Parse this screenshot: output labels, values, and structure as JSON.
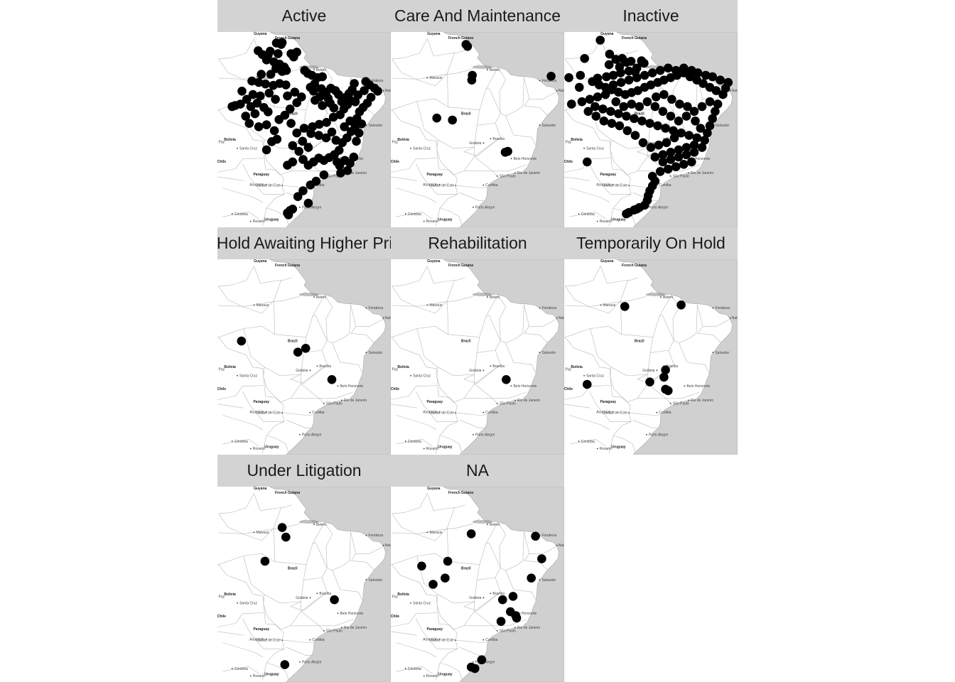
{
  "colors": {
    "strip": "#d3d3d3",
    "ocean": "#d0d0d0",
    "land": "#ffffff",
    "border": "#b8b8b8",
    "point": "#000000",
    "text": "#1a1a1a"
  },
  "map_labels": {
    "countries": [
      "Guyana",
      "French Guiana",
      "Brazil",
      "Bolivia",
      "Paraguay",
      "Chile",
      "Uruguay"
    ],
    "cities": [
      "Manaus",
      "Belém",
      "Fortaleza",
      "Natal",
      "Salvador",
      "Brasília",
      "Goiânia",
      "Belo Horizonte",
      "Rio de Janeiro",
      "São Paulo",
      "Curitiba",
      "Porto Alegre",
      "La Paz",
      "Santa Cruz",
      "Asunción",
      "Ciudad del Este",
      "Córdoba",
      "Rosario"
    ]
  },
  "facets": [
    {
      "title": "Active",
      "points": [
        [
          -55.7,
          4.1
        ],
        [
          -54.6,
          4.2
        ],
        [
          -54.8,
          3.8
        ],
        [
          -59.2,
          2.5
        ],
        [
          -58.4,
          1.7
        ],
        [
          -57.3,
          1.6
        ],
        [
          -56.9,
          2.4
        ],
        [
          -55.4,
          1.9
        ],
        [
          -51.8,
          2.2
        ],
        [
          -52.9,
          1.9
        ],
        [
          -52.4,
          1.2
        ],
        [
          -57.6,
          0.6
        ],
        [
          -56.2,
          0.2
        ],
        [
          -55.1,
          -0.3
        ],
        [
          -54.2,
          -0.9
        ],
        [
          -53.8,
          -1.6
        ],
        [
          -54.6,
          -1.8
        ],
        [
          -55.8,
          -1.2
        ],
        [
          -56.8,
          -2.4
        ],
        [
          -58.6,
          -2.4
        ],
        [
          -60.4,
          -3.8
        ],
        [
          -59.1,
          -4.1
        ],
        [
          -57.8,
          -4.4
        ],
        [
          -56.3,
          -4.7
        ],
        [
          -55.1,
          -4.3
        ],
        [
          -53.9,
          -4.6
        ],
        [
          -50.3,
          -1.6
        ],
        [
          -49.7,
          -2.2
        ],
        [
          -48.9,
          -2.6
        ],
        [
          -47.8,
          -3.1
        ],
        [
          -46.9,
          -2.9
        ],
        [
          -48.4,
          -4.4
        ],
        [
          -49.2,
          -5.1
        ],
        [
          -48.6,
          -5.9
        ],
        [
          -47.1,
          -5.4
        ],
        [
          -46.2,
          -6.2
        ],
        [
          -45.3,
          -5.3
        ],
        [
          -44.4,
          -5.8
        ],
        [
          -43.8,
          -6.6
        ],
        [
          -45.8,
          -7.4
        ],
        [
          -47.4,
          -7.1
        ],
        [
          -48.3,
          -7.8
        ],
        [
          -46.9,
          -8.9
        ],
        [
          -45.4,
          -8.4
        ],
        [
          -44.7,
          -9.4
        ],
        [
          -43.2,
          -8.1
        ],
        [
          -42.5,
          -7.2
        ],
        [
          -41.8,
          -6.4
        ],
        [
          -41.2,
          -5.6
        ],
        [
          -40.8,
          -4.3
        ],
        [
          -38.6,
          -3.9
        ],
        [
          -37.9,
          -4.6
        ],
        [
          -38.9,
          -5.8
        ],
        [
          -40.1,
          -6.7
        ],
        [
          -41.4,
          -7.9
        ],
        [
          -42.8,
          -9.6
        ],
        [
          -43.5,
          -10.8
        ],
        [
          -44.8,
          -11.3
        ],
        [
          -46.1,
          -12.4
        ],
        [
          -47.5,
          -12.8
        ],
        [
          -48.8,
          -13.3
        ],
        [
          -50.4,
          -13.6
        ],
        [
          -49.1,
          -14.7
        ],
        [
          -47.6,
          -15.1
        ],
        [
          -46.2,
          -15.6
        ],
        [
          -45.1,
          -14.4
        ],
        [
          -44.3,
          -16.1
        ],
        [
          -43.1,
          -16.6
        ],
        [
          -42.2,
          -15.6
        ],
        [
          -41.4,
          -14.3
        ],
        [
          -40.6,
          -13.2
        ],
        [
          -40.3,
          -11.6
        ],
        [
          -39.8,
          -10.2
        ],
        [
          -41.6,
          -12.1
        ],
        [
          -42.7,
          -13.3
        ],
        [
          -43.7,
          -18.2
        ],
        [
          -44.6,
          -19.1
        ],
        [
          -45.6,
          -19.7
        ],
        [
          -46.6,
          -20.3
        ],
        [
          -47.6,
          -19.8
        ],
        [
          -48.6,
          -20.6
        ],
        [
          -49.6,
          -21.3
        ],
        [
          -50.6,
          -20.1
        ],
        [
          -52.6,
          -20.6
        ],
        [
          -53.6,
          -21.3
        ],
        [
          -44.1,
          -20.6
        ],
        [
          -43.6,
          -21.4
        ],
        [
          -42.6,
          -20.3
        ],
        [
          -41.6,
          -20.9
        ],
        [
          -40.9,
          -19.6
        ],
        [
          -42.1,
          -22.4
        ],
        [
          -43.4,
          -22.9
        ],
        [
          -46.6,
          -23.3
        ],
        [
          -48.1,
          -24.6
        ],
        [
          -49.2,
          -25.4
        ],
        [
          -50.6,
          -26.6
        ],
        [
          -51.6,
          -27.8
        ],
        [
          -49.6,
          -29.2
        ],
        [
          -53.6,
          -31.2
        ],
        [
          -53.1,
          -30.7
        ],
        [
          -52.6,
          -30.4
        ],
        [
          -53.4,
          -31.6
        ],
        [
          -61.4,
          -7.6
        ],
        [
          -62.6,
          -8.6
        ],
        [
          -60.6,
          -9.1
        ],
        [
          -59.4,
          -8.4
        ],
        [
          -58.1,
          -9.3
        ],
        [
          -57.3,
          -10.2
        ],
        [
          -59.8,
          -10.6
        ],
        [
          -61.6,
          -11.1
        ],
        [
          -60.9,
          -12.6
        ],
        [
          -59.1,
          -13.3
        ],
        [
          -57.6,
          -12.9
        ],
        [
          -56.1,
          -14.1
        ],
        [
          -55.6,
          -15.9
        ],
        [
          -56.6,
          -16.4
        ],
        [
          -57.6,
          -18.1
        ],
        [
          -55.2,
          -11.8
        ],
        [
          -54.1,
          -10.9
        ],
        [
          -53.1,
          -9.6
        ],
        [
          -51.8,
          -8.3
        ],
        [
          -50.9,
          -7.1
        ],
        [
          -52.2,
          -6.1
        ],
        [
          -53.6,
          -6.9
        ],
        [
          -55.9,
          -7.6
        ],
        [
          -57.1,
          -6.3
        ],
        [
          -58.8,
          -6.9
        ],
        [
          -60.2,
          -6.6
        ],
        [
          -62.3,
          -5.9
        ],
        [
          -63.6,
          -8.9
        ],
        [
          -64.2,
          -9.1
        ],
        [
          -52.9,
          -12.6
        ],
        [
          -51.8,
          -14.6
        ],
        [
          -50.7,
          -16.3
        ],
        [
          -49.6,
          -17.6
        ],
        [
          -51.4,
          -18.4
        ],
        [
          -52.6,
          -17.2
        ],
        [
          -36.9,
          -5.3
        ],
        [
          -36.3,
          -5.9
        ],
        [
          -37.6,
          -7.2
        ],
        [
          -38.3,
          -8.4
        ],
        [
          -39.1,
          -9.3
        ],
        [
          -40.6,
          -8.1
        ],
        [
          -42.1,
          -8.7
        ],
        [
          -39.4,
          -12.7
        ],
        [
          -39.9,
          -14.6
        ],
        [
          -40.4,
          -16.3
        ]
      ]
    },
    {
      "title": "Care And Maintenance",
      "points": [
        [
          -52.6,
          3.8
        ],
        [
          -52.3,
          3.4
        ],
        [
          -51.4,
          -2.6
        ],
        [
          -51.5,
          -3.6
        ],
        [
          -36.3,
          -2.8
        ],
        [
          -58.2,
          -11.5
        ],
        [
          -55.2,
          -11.9
        ],
        [
          -45.1,
          -18.6
        ],
        [
          -44.6,
          -18.4
        ]
      ]
    },
    {
      "title": "Inactive",
      "points": [
        [
          -60.1,
          4.7
        ],
        [
          -58.3,
          1.8
        ],
        [
          -63.1,
          0.9
        ],
        [
          -57.1,
          0.7
        ],
        [
          -55.9,
          0.9
        ],
        [
          -54.2,
          0.3
        ],
        [
          -52.2,
          0.4
        ],
        [
          -51.7,
          -0.1
        ],
        [
          -53.1,
          -1.1
        ],
        [
          -54.6,
          -1.7
        ],
        [
          -56.2,
          -2.1
        ],
        [
          -57.6,
          -2.6
        ],
        [
          -58.9,
          -2.9
        ],
        [
          -60.6,
          -3.2
        ],
        [
          -61.6,
          -3.9
        ],
        [
          -60.3,
          -4.6
        ],
        [
          -59.1,
          -5.1
        ],
        [
          -57.9,
          -5.6
        ],
        [
          -56.6,
          -6.1
        ],
        [
          -55.3,
          -6.6
        ],
        [
          -54.1,
          -6.2
        ],
        [
          -52.9,
          -5.8
        ],
        [
          -51.6,
          -5.1
        ],
        [
          -50.4,
          -4.6
        ],
        [
          -49.1,
          -4.1
        ],
        [
          -47.9,
          -3.6
        ],
        [
          -46.6,
          -3.1
        ],
        [
          -45.4,
          -2.6
        ],
        [
          -44.1,
          -2.1
        ],
        [
          -42.9,
          -2.9
        ],
        [
          -41.6,
          -3.6
        ],
        [
          -40.4,
          -4.3
        ],
        [
          -39.1,
          -5.1
        ],
        [
          -37.9,
          -5.8
        ],
        [
          -36.6,
          -6.6
        ],
        [
          -36.1,
          -5.3
        ],
        [
          -35.6,
          -4.1
        ],
        [
          -37.1,
          -3.6
        ],
        [
          -38.6,
          -2.9
        ],
        [
          -39.9,
          -2.6
        ],
        [
          -41.4,
          -2.1
        ],
        [
          -42.6,
          -1.6
        ],
        [
          -44.1,
          -1.1
        ],
        [
          -45.6,
          -1.6
        ],
        [
          -47.1,
          -1.1
        ],
        [
          -48.6,
          -1.6
        ],
        [
          -50.1,
          -2.1
        ],
        [
          -51.6,
          -2.6
        ],
        [
          -53.1,
          -3.1
        ],
        [
          -54.6,
          -3.6
        ],
        [
          -56.1,
          -4.1
        ],
        [
          -57.6,
          -4.6
        ],
        [
          -59.1,
          -6.6
        ],
        [
          -60.6,
          -7.1
        ],
        [
          -62.1,
          -7.6
        ],
        [
          -63.6,
          -8.1
        ],
        [
          -61.1,
          -9.1
        ],
        [
          -59.6,
          -9.6
        ],
        [
          -58.1,
          -10.1
        ],
        [
          -56.6,
          -10.6
        ],
        [
          -55.1,
          -11.1
        ],
        [
          -53.6,
          -11.6
        ],
        [
          -52.1,
          -12.1
        ],
        [
          -50.6,
          -12.6
        ],
        [
          -49.1,
          -13.1
        ],
        [
          -47.6,
          -13.6
        ],
        [
          -46.1,
          -14.1
        ],
        [
          -44.6,
          -14.6
        ],
        [
          -43.1,
          -15.1
        ],
        [
          -41.6,
          -15.6
        ],
        [
          -40.1,
          -16.1
        ],
        [
          -39.6,
          -14.6
        ],
        [
          -39.1,
          -13.1
        ],
        [
          -38.6,
          -11.6
        ],
        [
          -38.1,
          -10.1
        ],
        [
          -37.6,
          -8.6
        ],
        [
          -39.1,
          -8.1
        ],
        [
          -40.6,
          -9.1
        ],
        [
          -42.1,
          -10.1
        ],
        [
          -43.6,
          -11.1
        ],
        [
          -45.1,
          -12.1
        ],
        [
          -46.6,
          -11.1
        ],
        [
          -48.1,
          -10.1
        ],
        [
          -49.6,
          -9.1
        ],
        [
          -51.1,
          -8.1
        ],
        [
          -52.6,
          -9.1
        ],
        [
          -54.1,
          -8.6
        ],
        [
          -55.6,
          -9.1
        ],
        [
          -57.1,
          -8.1
        ],
        [
          -42.1,
          -17.1
        ],
        [
          -43.6,
          -17.6
        ],
        [
          -45.1,
          -18.1
        ],
        [
          -46.6,
          -18.6
        ],
        [
          -48.1,
          -19.1
        ],
        [
          -49.6,
          -19.6
        ],
        [
          -48.1,
          -20.6
        ],
        [
          -46.6,
          -20.1
        ],
        [
          -45.1,
          -19.6
        ],
        [
          -43.6,
          -19.1
        ],
        [
          -42.1,
          -18.6
        ],
        [
          -40.6,
          -17.6
        ],
        [
          -42.6,
          -20.6
        ],
        [
          -44.1,
          -21.1
        ],
        [
          -45.6,
          -21.6
        ],
        [
          -47.1,
          -22.1
        ],
        [
          -48.6,
          -22.6
        ],
        [
          -50.1,
          -23.6
        ],
        [
          -49.6,
          -24.6
        ],
        [
          -50.1,
          -25.6
        ],
        [
          -50.6,
          -26.6
        ],
        [
          -50.9,
          -27.6
        ],
        [
          -51.1,
          -28.6
        ],
        [
          -51.6,
          -29.6
        ],
        [
          -52.6,
          -30.1
        ],
        [
          -53.6,
          -30.6
        ],
        [
          -54.6,
          -31.1
        ],
        [
          -55.1,
          -31.4
        ],
        [
          -53.1,
          -30.4
        ],
        [
          -62.6,
          -20.6
        ],
        [
          -55.1,
          0.1
        ],
        [
          -53.4,
          -1.9
        ],
        [
          -56.4,
          -0.9
        ],
        [
          -58.4,
          -0.4
        ],
        [
          -49.4,
          -7.1
        ],
        [
          -47.9,
          -6.6
        ],
        [
          -46.4,
          -7.6
        ],
        [
          -44.9,
          -8.6
        ],
        [
          -43.4,
          -9.1
        ],
        [
          -41.9,
          -12.1
        ],
        [
          -40.9,
          -13.6
        ],
        [
          -45.9,
          -15.6
        ],
        [
          -47.4,
          -16.6
        ],
        [
          -48.9,
          -17.1
        ],
        [
          -50.4,
          -17.6
        ],
        [
          -51.9,
          -16.6
        ],
        [
          -53.4,
          -15.1
        ],
        [
          -54.9,
          -14.1
        ],
        [
          -56.4,
          -13.1
        ],
        [
          -57.9,
          -12.6
        ],
        [
          -59.4,
          -12.1
        ],
        [
          -60.9,
          -11.1
        ],
        [
          -62.4,
          -10.1
        ],
        [
          -64.1,
          -5.1
        ],
        [
          -65.6,
          -8.6
        ],
        [
          -66.1,
          -3.1
        ],
        [
          -63.9,
          -2.6
        ]
      ]
    },
    {
      "title": "On Hold Awaiting Higher Prices",
      "points": [
        [
          -62.4,
          -10.6
        ],
        [
          -51.6,
          -12.9
        ],
        [
          -50.1,
          -12.1
        ],
        [
          -45.1,
          -18.6
        ]
      ]
    },
    {
      "title": "Rehabilitation",
      "points": [
        [
          -44.9,
          -18.6
        ]
      ]
    },
    {
      "title": "Temporarily On Hold",
      "points": [
        [
          -55.4,
          -3.4
        ],
        [
          -44.6,
          -3.1
        ],
        [
          -62.6,
          -19.6
        ],
        [
          -50.6,
          -19.1
        ],
        [
          -47.6,
          -16.6
        ],
        [
          -47.9,
          -18.1
        ],
        [
          -47.6,
          -20.6
        ],
        [
          -47.1,
          -20.9
        ]
      ]
    },
    {
      "title": "Under Litigation",
      "points": [
        [
          -54.6,
          -2.1
        ],
        [
          -53.9,
          -4.1
        ],
        [
          -57.9,
          -9.1
        ],
        [
          -44.6,
          -17.1
        ],
        [
          -54.1,
          -30.6
        ]
      ]
    },
    {
      "title": "NA",
      "points": [
        [
          -51.6,
          -3.4
        ],
        [
          -39.3,
          -3.9
        ],
        [
          -38.1,
          -8.6
        ],
        [
          -56.1,
          -9.1
        ],
        [
          -61.1,
          -10.1
        ],
        [
          -56.6,
          -12.6
        ],
        [
          -58.9,
          -13.9
        ],
        [
          -40.1,
          -12.6
        ],
        [
          -43.6,
          -16.4
        ],
        [
          -45.6,
          -17.1
        ],
        [
          -44.1,
          -19.6
        ],
        [
          -43.1,
          -20.4
        ],
        [
          -42.9,
          -20.9
        ],
        [
          -45.9,
          -21.6
        ],
        [
          -49.6,
          -29.6
        ],
        [
          -51.6,
          -31.1
        ],
        [
          -50.9,
          -31.4
        ]
      ]
    }
  ]
}
